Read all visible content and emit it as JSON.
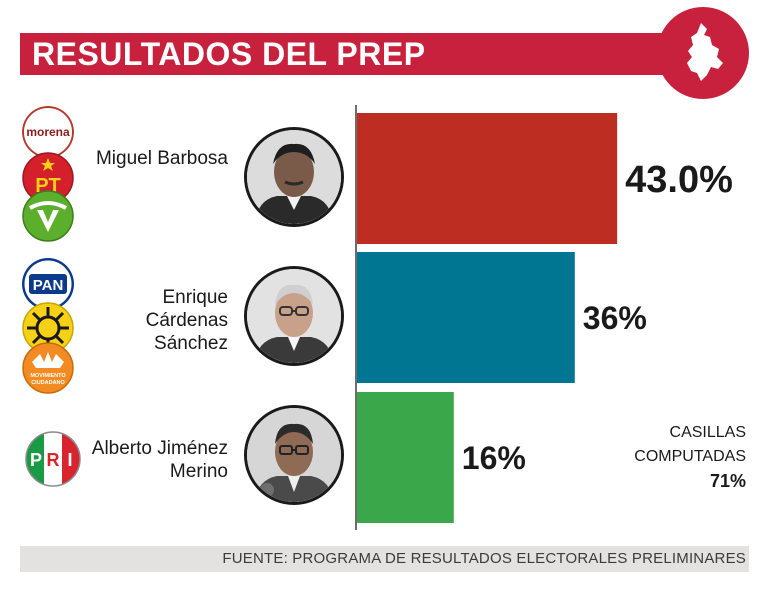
{
  "header": {
    "title": "RESULTADOS DEL PREP"
  },
  "chart_data": {
    "type": "bar",
    "orientation": "horizontal",
    "title": "RESULTADOS DEL PREP",
    "categories": [
      "Miguel Barbosa",
      "Enrique Cárdenas Sánchez",
      "Alberto Jiménez Merino"
    ],
    "values": [
      43.0,
      36,
      16
    ],
    "value_labels": [
      "43.0%",
      "36%",
      "16%"
    ],
    "colors": [
      "#be2d22",
      "#007692",
      "#3aa84a"
    ],
    "xlim": [
      0,
      50
    ],
    "unit": "%"
  },
  "candidates": [
    {
      "name_lines": [
        "Miguel Barbosa"
      ],
      "parties": [
        "morena",
        "PT",
        "V"
      ]
    },
    {
      "name_lines": [
        "Enrique",
        "Cárdenas",
        "Sánchez"
      ],
      "parties": [
        "PAN",
        "PRD",
        "MOVIMIENTO CIUDADANO"
      ]
    },
    {
      "name_lines": [
        "Alberto Jiménez",
        "Merino"
      ],
      "parties": [
        "PRI"
      ]
    }
  ],
  "casillas": {
    "line1": "CASILLAS",
    "line2": "COMPUTADAS",
    "value": "71%"
  },
  "source": {
    "text": "FUENTE: PROGRAMA DE RESULTADOS ELECTORALES PRELIMINARES"
  },
  "colors": {
    "title_bar": "#c8213d",
    "source_bar": "#e4e2e0"
  },
  "logos": {
    "morena": "morena",
    "pt": "PT",
    "pan": "PAN",
    "pri_p": "P",
    "pri_r": "R",
    "pri_i": "I",
    "mc_line1": "MOVIMIENTO",
    "mc_line2": "CIUDADANO"
  }
}
